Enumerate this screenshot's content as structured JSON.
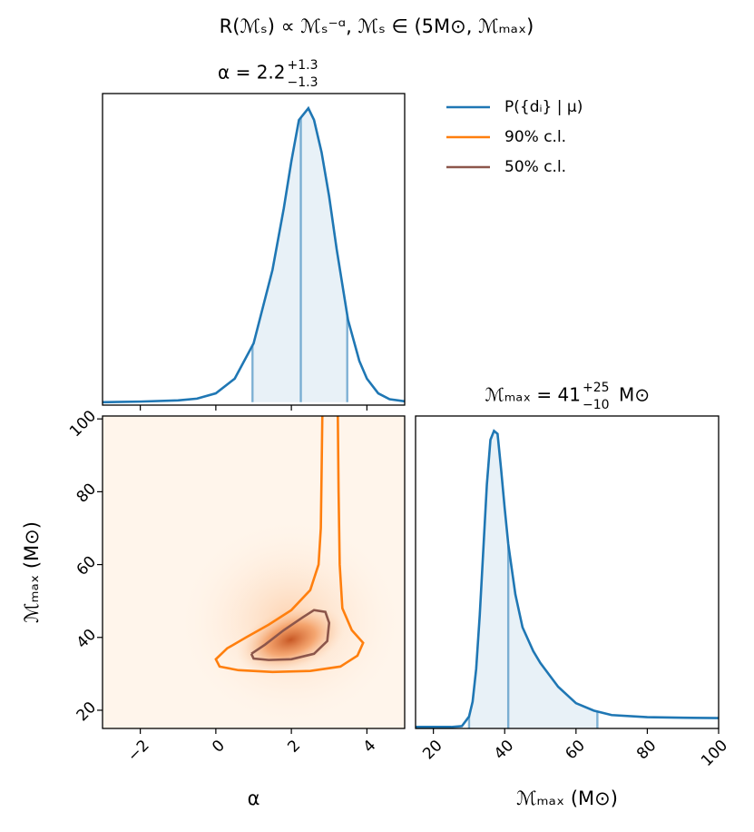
{
  "title": "R(ℳₛ) ∝ ℳₛ⁻ᵅ, ℳₛ ∈ (5M⊙, ℳₘₐₓ)",
  "chart_data": [
    {
      "type": "line",
      "title": "α = 2.2",
      "title_upper": "+1.3",
      "title_lower": "−1.3",
      "xlim": [
        -3,
        5
      ],
      "xticks": [
        -2,
        0,
        2,
        4
      ],
      "ylim": [
        -0.01,
        1.05
      ],
      "quantiles": [
        0.97,
        2.25,
        3.48
      ],
      "series": [
        {
          "name": "P({dᵢ} | μ)",
          "color": "#1f77b4",
          "x": [
            -3,
            -2,
            -1,
            -0.5,
            0,
            0.5,
            1,
            1.5,
            1.8,
            2.0,
            2.2,
            2.45,
            2.6,
            2.8,
            3.0,
            3.2,
            3.5,
            3.8,
            4.0,
            4.3,
            4.6,
            5
          ],
          "values": [
            0,
            0.002,
            0.006,
            0.012,
            0.03,
            0.08,
            0.2,
            0.45,
            0.66,
            0.82,
            0.96,
            1.0,
            0.96,
            0.85,
            0.7,
            0.52,
            0.28,
            0.14,
            0.08,
            0.03,
            0.01,
            0.003
          ]
        }
      ]
    },
    {
      "type": "contour",
      "xlabel": "α",
      "ylabel": "ℳₘₐₓ (M⊙)",
      "xlim": [
        -3,
        5
      ],
      "xticks": [
        {
          "value": -2,
          "label": "−2"
        },
        0,
        2,
        4
      ],
      "ylim": [
        15,
        100.8
      ],
      "yticks": [
        20,
        40,
        60,
        80,
        100
      ],
      "series": [
        {
          "name": "90% c.l.",
          "color": "#ff7f0e",
          "x": [
            2.82,
            2.8,
            2.78,
            2.72,
            2.5,
            2.0,
            1.4,
            0.8,
            0.3,
            0.0,
            0.1,
            0.6,
            1.5,
            2.5,
            3.3,
            3.75,
            3.9,
            3.6,
            3.35,
            3.28,
            3.25,
            3.23
          ],
          "y": [
            100.8,
            85,
            70,
            60,
            53,
            47.5,
            43.5,
            40,
            37,
            34,
            32,
            31,
            30.5,
            30.8,
            32,
            35,
            38.5,
            42,
            48,
            60,
            80,
            100.8
          ]
        },
        {
          "name": "50% c.l.",
          "color": "#8c564b",
          "x": [
            0.94,
            1.3,
            1.8,
            2.3,
            2.6,
            2.9,
            3.0,
            2.95,
            2.6,
            2.0,
            1.4,
            1.0,
            0.94
          ],
          "y": [
            35.5,
            38,
            42,
            45.5,
            47.5,
            47,
            44,
            39,
            35.5,
            34,
            33.8,
            34.2,
            35.5
          ]
        }
      ]
    },
    {
      "type": "line",
      "title": "ℳₘₐₓ = 41",
      "title_upper": "+25",
      "title_lower": "−10",
      "title_unit": "M⊙",
      "xlabel": "ℳₘₐₓ (M⊙)",
      "xlim": [
        15,
        100
      ],
      "xticks": [
        20,
        40,
        60,
        80,
        100
      ],
      "ylim": [
        0,
        1.05
      ],
      "quantiles": [
        30,
        41,
        66
      ],
      "series": [
        {
          "color": "#1f77b4",
          "x": [
            15,
            25,
            28,
            30,
            31,
            32,
            33,
            34,
            35,
            36,
            37,
            38,
            39,
            40,
            41,
            43,
            45,
            48,
            50,
            55,
            60,
            65,
            70,
            80,
            90,
            100
          ],
          "values": [
            0.005,
            0.005,
            0.008,
            0.04,
            0.09,
            0.2,
            0.38,
            0.6,
            0.82,
            0.97,
            1.0,
            0.99,
            0.87,
            0.74,
            0.62,
            0.45,
            0.34,
            0.26,
            0.22,
            0.14,
            0.085,
            0.06,
            0.045,
            0.038,
            0.036,
            0.035
          ]
        }
      ]
    }
  ]
}
